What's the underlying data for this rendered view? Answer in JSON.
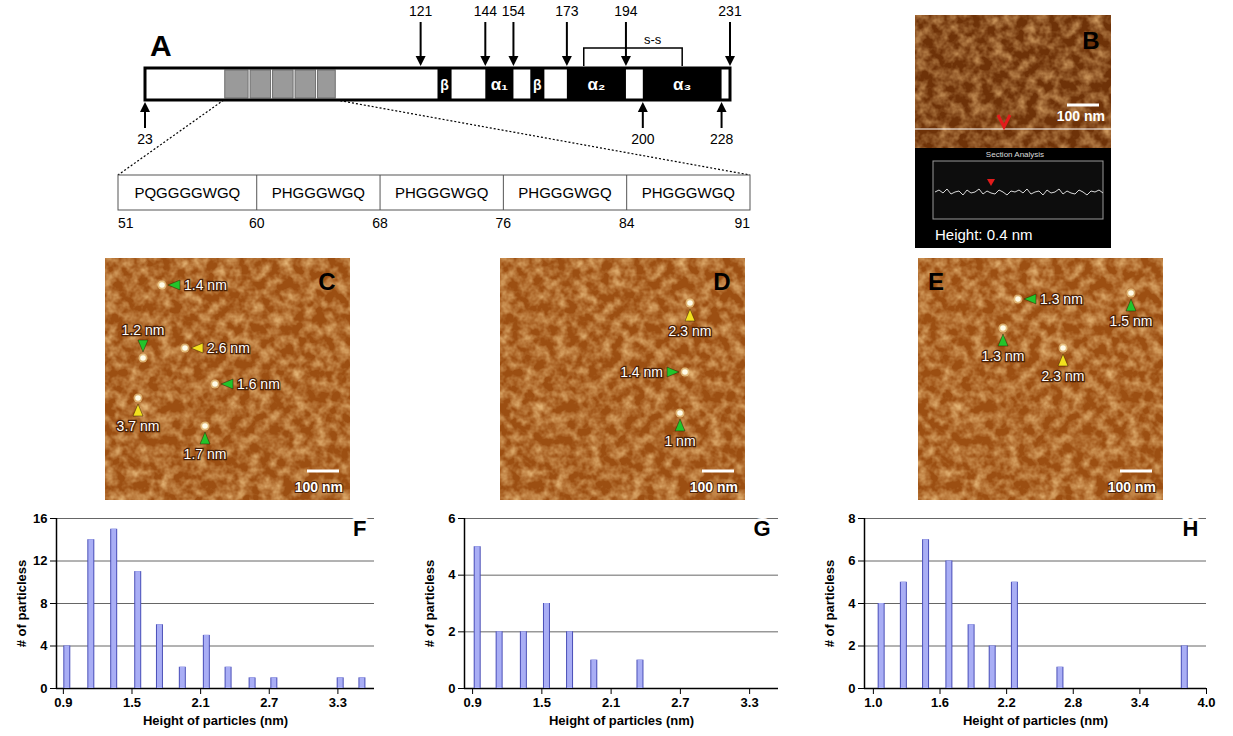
{
  "figure": {
    "A": {
      "letter": "A",
      "range": [
        23,
        231
      ],
      "segments": [
        {
          "start": 127,
          "end": 132,
          "label": "β"
        },
        {
          "start": 144,
          "end": 154,
          "label": "α₁"
        },
        {
          "start": 160,
          "end": 165,
          "label": "β"
        },
        {
          "start": 173,
          "end": 194,
          "label": "α₂"
        },
        {
          "start": 200,
          "end": 228,
          "label": "α₃"
        }
      ],
      "markers_top": [
        121,
        144,
        154,
        173,
        194,
        231
      ],
      "markers_bottom": [
        23,
        200,
        228
      ],
      "disulfide": {
        "from": 179,
        "to": 214,
        "label": "s-s"
      },
      "repeats": [
        {
          "sequence": "PQGGGGWGQ",
          "start": 51
        },
        {
          "sequence": "PHGGGWGQ",
          "start": 60
        },
        {
          "sequence": "PHGGGWGQ",
          "start": 68
        },
        {
          "sequence": "PHGGGWGQ",
          "start": 76
        },
        {
          "sequence": "PHGGGWGQ",
          "start": 84
        }
      ],
      "repeats_end": 91
    },
    "B": {
      "letter": "B",
      "scale_bar": "100 nm",
      "section_title": "Section Analysis",
      "section_label": "Height: 0.4 nm"
    },
    "C": {
      "letter": "C",
      "scale_bar": "100 nm",
      "annotations": [
        {
          "label": "1.4 nm",
          "color": "#22c42a"
        },
        {
          "label": "1.2 nm",
          "color": "#22c42a"
        },
        {
          "label": "2.6 nm",
          "color": "#f2e11e"
        },
        {
          "label": "1.6 nm",
          "color": "#22c42a"
        },
        {
          "label": "3.7 nm",
          "color": "#f2e11e"
        },
        {
          "label": "1.7 nm",
          "color": "#22c42a"
        }
      ]
    },
    "D": {
      "letter": "D",
      "scale_bar": "100 nm",
      "annotations": [
        {
          "label": "2.3 nm",
          "color": "#f2e11e"
        },
        {
          "label": "1.4 nm",
          "color": "#22c42a"
        },
        {
          "label": "1 nm",
          "color": "#22c42a"
        }
      ]
    },
    "E": {
      "letter": "E",
      "scale_bar": "100 nm",
      "annotations": [
        {
          "label": "1.3 nm",
          "color": "#22c42a"
        },
        {
          "label": "1.5 nm",
          "color": "#22c42a"
        },
        {
          "label": "1.3 nm",
          "color": "#22c42a"
        },
        {
          "label": "2.3 nm",
          "color": "#f2e11e"
        }
      ]
    }
  },
  "chart_data": [
    {
      "type": "bar",
      "title": "F",
      "x": [
        0.93,
        1.14,
        1.34,
        1.55,
        1.74,
        1.94,
        2.15,
        2.34,
        2.55,
        2.74,
        3.32,
        3.51
      ],
      "values": [
        4,
        14,
        15,
        11,
        6,
        2,
        5,
        2,
        1,
        1,
        1,
        1
      ],
      "x_label": "Height of particles (nm)",
      "y_label": "# of particless",
      "xlim": [
        0.84,
        3.62
      ],
      "xticks": [
        0.9,
        1.5,
        2.1,
        2.7,
        3.3
      ],
      "ylim": [
        0,
        16
      ],
      "yticks": [
        0,
        4,
        8,
        12,
        16
      ],
      "color": "#a9aef5",
      "grid": true
    },
    {
      "type": "bar",
      "title": "G",
      "x": [
        0.94,
        1.13,
        1.34,
        1.54,
        1.74,
        1.95,
        2.35
      ],
      "values": [
        5,
        2,
        2,
        3,
        2,
        1,
        1
      ],
      "x_label": "Height of particles (nm)",
      "y_label": "# of particless",
      "xlim": [
        0.83,
        3.55
      ],
      "xticks": [
        0.9,
        1.5,
        2.1,
        2.7,
        3.3
      ],
      "ylim": [
        0,
        6
      ],
      "yticks": [
        0,
        2,
        4,
        6
      ],
      "color": "#a9aef5",
      "grid": true
    },
    {
      "type": "bar",
      "title": "H",
      "x": [
        1.07,
        1.27,
        1.47,
        1.68,
        1.88,
        2.07,
        2.27,
        2.68,
        3.8
      ],
      "values": [
        4,
        5,
        7,
        6,
        3,
        2,
        5,
        1,
        2
      ],
      "x_label": "Height of particles (nm)",
      "y_label": "# of particless",
      "xlim": [
        0.92,
        4.0
      ],
      "xticks": [
        {
          "value": 1,
          "label": "1.0"
        },
        1.6,
        2.2,
        2.8,
        3.4,
        {
          "value": 4,
          "label": "4.0"
        }
      ],
      "ylim": [
        0,
        8
      ],
      "yticks": [
        0,
        2,
        4,
        6,
        8
      ],
      "color": "#a9aef5",
      "grid": true
    }
  ]
}
